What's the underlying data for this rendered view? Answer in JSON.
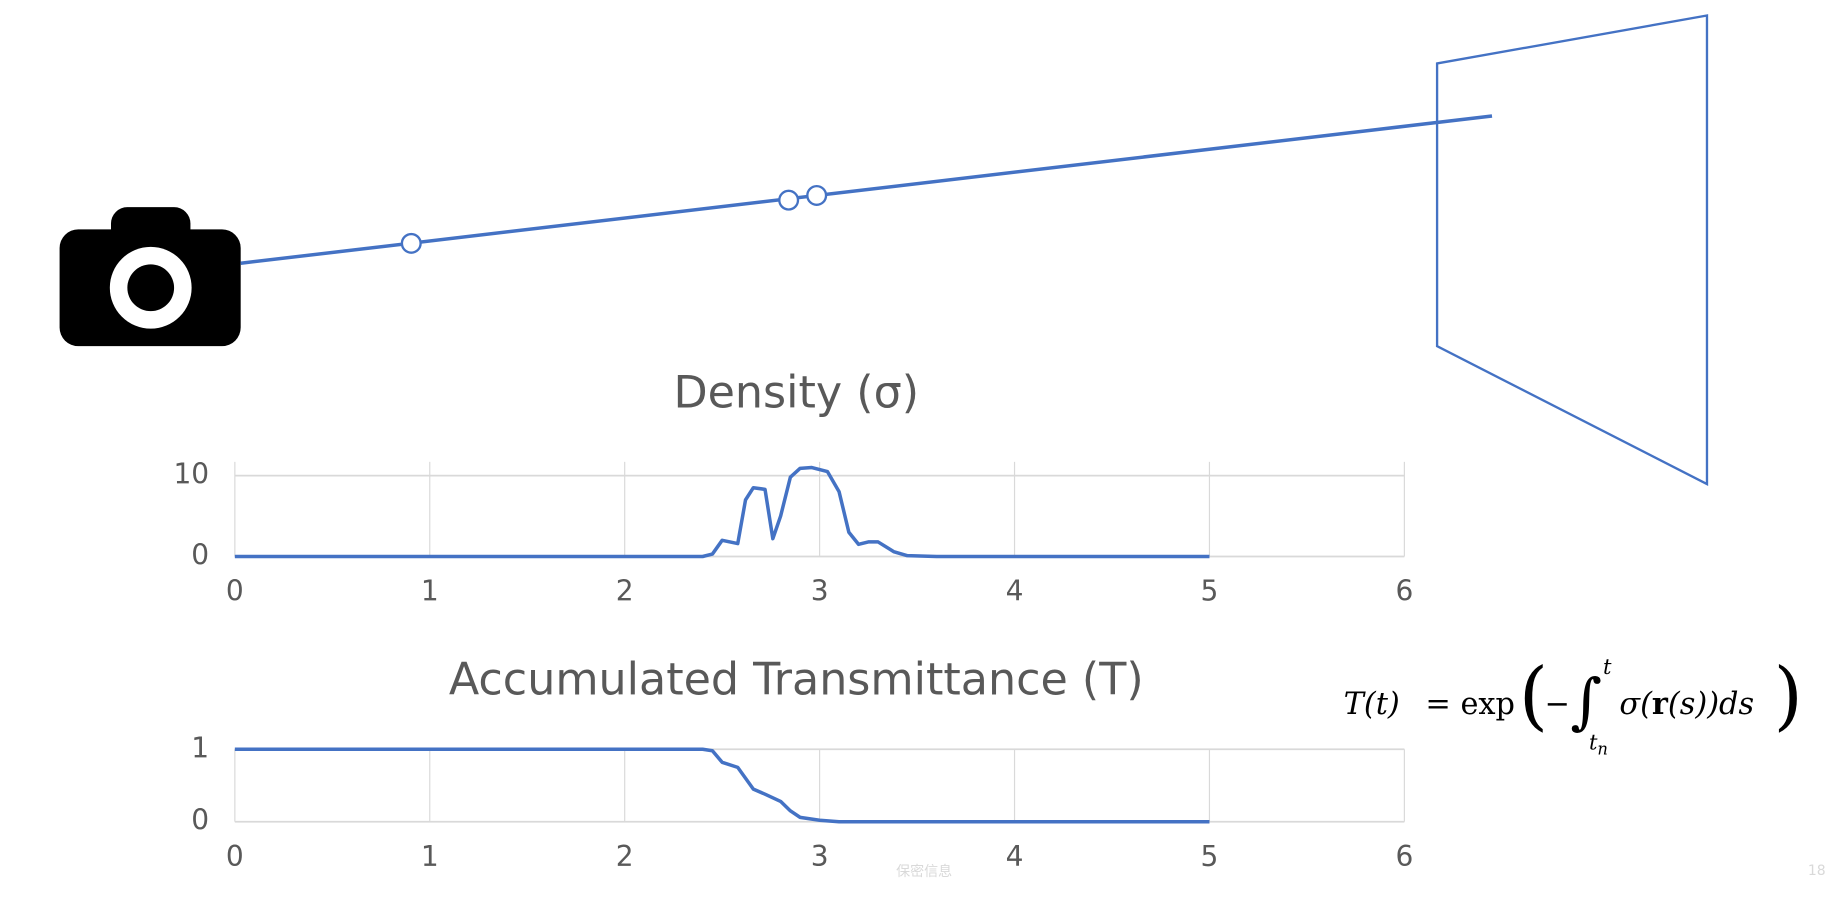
{
  "chart_data": [
    {
      "type": "line",
      "title": "Density (σ)",
      "color": "#4472c4",
      "x": [
        0,
        1,
        2,
        2.4,
        2.45,
        2.5,
        2.58,
        2.62,
        2.66,
        2.72,
        2.76,
        2.8,
        2.85,
        2.9,
        2.96,
        3.04,
        3.1,
        3.15,
        3.2,
        3.25,
        3.3,
        3.38,
        3.45,
        3.6,
        4,
        5
      ],
      "values": [
        0,
        0,
        0,
        0,
        0.3,
        2,
        1.6,
        7,
        8.5,
        8.3,
        2.2,
        5,
        9.8,
        10.9,
        11,
        10.5,
        8,
        3,
        1.5,
        1.8,
        1.8,
        0.6,
        0.1,
        0,
        0,
        0
      ],
      "xlim": [
        0,
        6
      ],
      "xticks": [
        0,
        1,
        2,
        3,
        4,
        5,
        6
      ],
      "ylim": [
        0,
        11.7
      ],
      "yticks": [
        0,
        10
      ],
      "grid": true
    },
    {
      "type": "line",
      "title": "Accumulated Transmittance (T)",
      "color": "#4472c4",
      "x": [
        0,
        1,
        2,
        2.4,
        2.45,
        2.5,
        2.58,
        2.62,
        2.66,
        2.72,
        2.8,
        2.85,
        2.9,
        3.0,
        3.1,
        3.3,
        4,
        5
      ],
      "values": [
        1,
        1,
        1,
        1,
        0.98,
        0.82,
        0.75,
        0.6,
        0.45,
        0.38,
        0.28,
        0.15,
        0.06,
        0.02,
        0,
        0,
        0,
        0
      ],
      "xlim": [
        0,
        6
      ],
      "xticks": [
        0,
        1,
        2,
        3,
        4,
        5,
        6
      ],
      "ylim": [
        0,
        1
      ],
      "yticks": [
        0,
        1
      ],
      "grid": true
    }
  ],
  "formula": {
    "lhs": "T(t)",
    "eq": "=",
    "fn": "exp",
    "open": "(",
    "minus": "−",
    "integral": "∫",
    "upper": "t",
    "lower": "t",
    "lower_sub": "n",
    "body_pre": "σ(",
    "body_bold": "r",
    "body_post": "(s))ds",
    "close": ")"
  },
  "footer": {
    "text": "保密信息",
    "page": "18"
  }
}
